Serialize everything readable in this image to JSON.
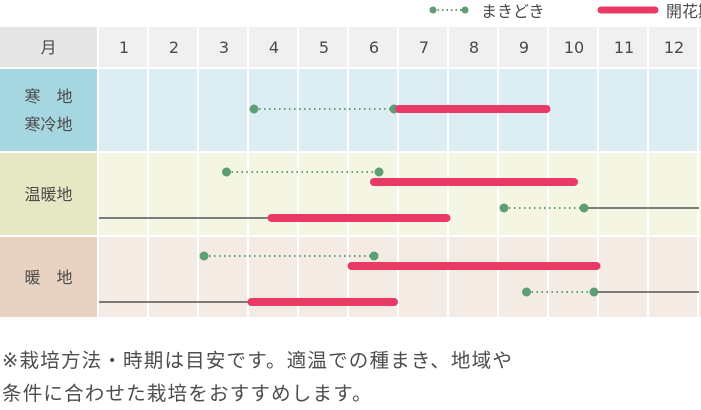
{
  "legend": {
    "sowing": "まきどき",
    "flowering": "開花期"
  },
  "colors": {
    "sowing": "#5e9e74",
    "flowering": "#e83a64",
    "header_label_bg": "#e6e6e6",
    "header_bg": "#f0f0f0",
    "cold_label_bg": "#a6d6e0",
    "cold_bg": "#dceef4",
    "warm_label_bg": "#e6e7c3",
    "warm_bg": "#f4f5e2",
    "hot_label_bg": "#e8d3c2",
    "hot_bg": "#f4ebe4",
    "grid": "#ffffff",
    "axis_line": "#555555"
  },
  "chart_data": {
    "type": "gantt",
    "month_header": "月",
    "months": [
      "1",
      "2",
      "3",
      "4",
      "5",
      "6",
      "7",
      "8",
      "9",
      "10",
      "11",
      "12"
    ],
    "regions": [
      {
        "id": "cold",
        "label_lines": [
          "寒　地",
          "寒冷地"
        ],
        "sowing": [
          {
            "start": 4.1,
            "end": 6.9
          }
        ],
        "flowering": [
          {
            "start": 7.0,
            "end": 9.95
          }
        ],
        "perennial": []
      },
      {
        "id": "warm",
        "label_lines": [
          "温暖地"
        ],
        "sowing": [
          {
            "start": 3.55,
            "end": 6.6
          },
          {
            "start": 9.1,
            "end": 10.7
          }
        ],
        "flowering": [
          {
            "start": 6.5,
            "end": 10.5
          },
          {
            "start": 4.45,
            "end": 7.95
          }
        ],
        "perennial": [
          {
            "start": 0.0,
            "end": 4.45
          },
          {
            "start": 10.7,
            "end": 13.0
          }
        ]
      },
      {
        "id": "hot",
        "label_lines": [
          "暖　地"
        ],
        "sowing": [
          {
            "start": 3.1,
            "end": 6.5
          },
          {
            "start": 9.55,
            "end": 10.9
          }
        ],
        "flowering": [
          {
            "start": 6.05,
            "end": 10.95
          },
          {
            "start": 4.05,
            "end": 6.9
          }
        ],
        "perennial": [
          {
            "start": 0.0,
            "end": 4.05
          },
          {
            "start": 10.9,
            "end": 13.0
          }
        ]
      }
    ]
  },
  "note": {
    "line1": "※栽培方法・時期は目安です。適温での種まき、地域や",
    "line2": "条件に合わせた栽培をおすすめします。"
  }
}
